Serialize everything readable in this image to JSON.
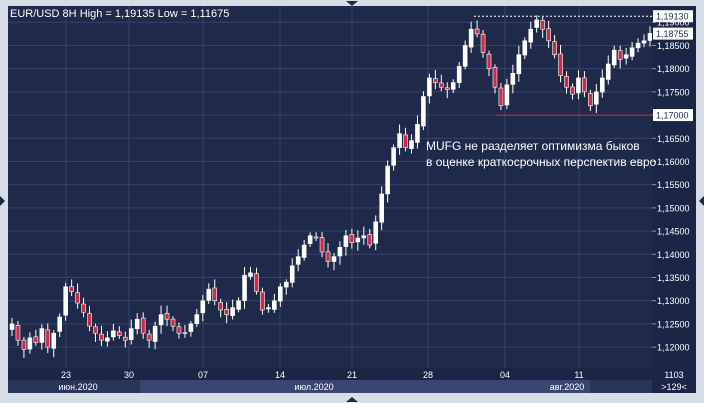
{
  "header": {
    "symbol": "EUR/USD 8H",
    "hl_text": "High = 1,19135 Low = 1,11675"
  },
  "annotation": {
    "line1": "MUFG не разделяет оптимизма быков",
    "line2": "в оценке краткосрочных перспектив евро"
  },
  "colors": {
    "background": "#1f2a4b",
    "grid": "#37426a",
    "up_candle": "#ffffff",
    "down_candle": "#cc2b47",
    "frame": "#d7dde6",
    "axis_panel": "#1b2546"
  },
  "chart_data": {
    "type": "candlestick",
    "title": "EUR/USD 8H",
    "ylim": [
      1.1155,
      1.1935
    ],
    "y_ticks": [
      "1,12000",
      "1,12500",
      "1,13000",
      "1,13500",
      "1,14000",
      "1,14500",
      "1,15000",
      "1,15500",
      "1,16000",
      "1,16500",
      "1,17000",
      "1,17500",
      "1,18000",
      "1,18500",
      "1,19000"
    ],
    "price_labels": [
      "1,19130",
      "1,18755",
      "1,17000"
    ],
    "price_levels": [
      {
        "label": "1,19130",
        "value": 1.1913,
        "style": "dotted",
        "color": "#ffffff"
      },
      {
        "label": "1,17000",
        "value": 1.17,
        "style": "solid",
        "color": "#cc2b47"
      }
    ],
    "x_ticks": [
      "23",
      "30",
      "07",
      "14",
      "21",
      "28",
      "04",
      "11"
    ],
    "month_labels": [
      "июн.2020",
      "июл.2020",
      "авг.2020"
    ],
    "right_bottom": [
      "1103",
      ">129<"
    ],
    "closes": [
      1.125,
      1.1215,
      1.1195,
      1.122,
      1.121,
      1.124,
      1.12,
      1.123,
      1.1265,
      1.133,
      1.132,
      1.1295,
      1.1275,
      1.1245,
      1.123,
      1.1215,
      1.122,
      1.1235,
      1.1225,
      1.1215,
      1.124,
      1.126,
      1.123,
      1.1215,
      1.1245,
      1.127,
      1.126,
      1.1245,
      1.123,
      1.123,
      1.125,
      1.127,
      1.13,
      1.1325,
      1.13,
      1.128,
      1.127,
      1.1285,
      1.13,
      1.1355,
      1.136,
      1.132,
      1.128,
      1.1285,
      1.13,
      1.133,
      1.134,
      1.1375,
      1.1395,
      1.142,
      1.144,
      1.1435,
      1.1405,
      1.1385,
      1.1395,
      1.1415,
      1.144,
      1.1425,
      1.1435,
      1.144,
      1.142,
      1.147,
      1.153,
      1.159,
      1.163,
      1.166,
      1.163,
      1.1645,
      1.168,
      1.174,
      1.178,
      1.177,
      1.176,
      1.1755,
      1.177,
      1.1805,
      1.185,
      1.1885,
      1.1875,
      1.1835,
      1.18,
      1.176,
      1.172,
      1.1765,
      1.179,
      1.183,
      1.186,
      1.1885,
      1.1905,
      1.1885,
      1.186,
      1.183,
      1.1785,
      1.176,
      1.1745,
      1.178,
      1.175,
      1.172,
      1.175,
      1.178,
      1.181,
      1.184,
      1.182,
      1.183,
      1.1845,
      1.1855,
      1.186,
      1.1876
    ]
  }
}
